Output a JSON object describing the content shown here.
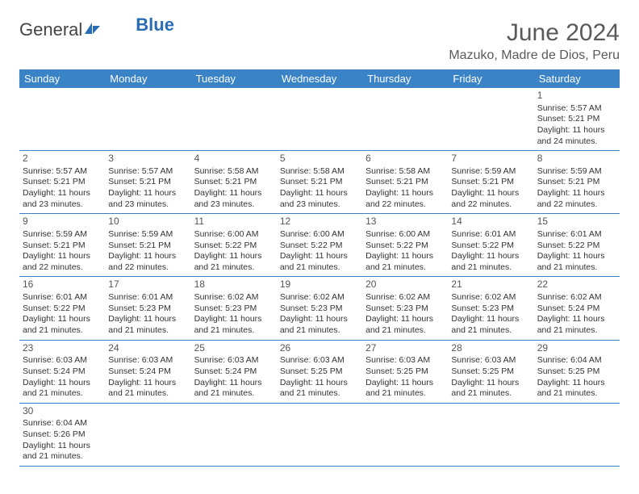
{
  "logo": {
    "text1": "General",
    "text2": "Blue"
  },
  "title": "June 2024",
  "location": "Mazuko, Madre de Dios, Peru",
  "header_bg": "#3a83c7",
  "border_color": "#3a83c7",
  "weekdays": [
    "Sunday",
    "Monday",
    "Tuesday",
    "Wednesday",
    "Thursday",
    "Friday",
    "Saturday"
  ],
  "weeks": [
    [
      null,
      null,
      null,
      null,
      null,
      null,
      {
        "n": "1",
        "sr": "5:57 AM",
        "ss": "5:21 PM",
        "dl": "11 hours and 24 minutes."
      }
    ],
    [
      {
        "n": "2",
        "sr": "5:57 AM",
        "ss": "5:21 PM",
        "dl": "11 hours and 23 minutes."
      },
      {
        "n": "3",
        "sr": "5:57 AM",
        "ss": "5:21 PM",
        "dl": "11 hours and 23 minutes."
      },
      {
        "n": "4",
        "sr": "5:58 AM",
        "ss": "5:21 PM",
        "dl": "11 hours and 23 minutes."
      },
      {
        "n": "5",
        "sr": "5:58 AM",
        "ss": "5:21 PM",
        "dl": "11 hours and 23 minutes."
      },
      {
        "n": "6",
        "sr": "5:58 AM",
        "ss": "5:21 PM",
        "dl": "11 hours and 22 minutes."
      },
      {
        "n": "7",
        "sr": "5:59 AM",
        "ss": "5:21 PM",
        "dl": "11 hours and 22 minutes."
      },
      {
        "n": "8",
        "sr": "5:59 AM",
        "ss": "5:21 PM",
        "dl": "11 hours and 22 minutes."
      }
    ],
    [
      {
        "n": "9",
        "sr": "5:59 AM",
        "ss": "5:21 PM",
        "dl": "11 hours and 22 minutes."
      },
      {
        "n": "10",
        "sr": "5:59 AM",
        "ss": "5:21 PM",
        "dl": "11 hours and 22 minutes."
      },
      {
        "n": "11",
        "sr": "6:00 AM",
        "ss": "5:22 PM",
        "dl": "11 hours and 21 minutes."
      },
      {
        "n": "12",
        "sr": "6:00 AM",
        "ss": "5:22 PM",
        "dl": "11 hours and 21 minutes."
      },
      {
        "n": "13",
        "sr": "6:00 AM",
        "ss": "5:22 PM",
        "dl": "11 hours and 21 minutes."
      },
      {
        "n": "14",
        "sr": "6:01 AM",
        "ss": "5:22 PM",
        "dl": "11 hours and 21 minutes."
      },
      {
        "n": "15",
        "sr": "6:01 AM",
        "ss": "5:22 PM",
        "dl": "11 hours and 21 minutes."
      }
    ],
    [
      {
        "n": "16",
        "sr": "6:01 AM",
        "ss": "5:22 PM",
        "dl": "11 hours and 21 minutes."
      },
      {
        "n": "17",
        "sr": "6:01 AM",
        "ss": "5:23 PM",
        "dl": "11 hours and 21 minutes."
      },
      {
        "n": "18",
        "sr": "6:02 AM",
        "ss": "5:23 PM",
        "dl": "11 hours and 21 minutes."
      },
      {
        "n": "19",
        "sr": "6:02 AM",
        "ss": "5:23 PM",
        "dl": "11 hours and 21 minutes."
      },
      {
        "n": "20",
        "sr": "6:02 AM",
        "ss": "5:23 PM",
        "dl": "11 hours and 21 minutes."
      },
      {
        "n": "21",
        "sr": "6:02 AM",
        "ss": "5:23 PM",
        "dl": "11 hours and 21 minutes."
      },
      {
        "n": "22",
        "sr": "6:02 AM",
        "ss": "5:24 PM",
        "dl": "11 hours and 21 minutes."
      }
    ],
    [
      {
        "n": "23",
        "sr": "6:03 AM",
        "ss": "5:24 PM",
        "dl": "11 hours and 21 minutes."
      },
      {
        "n": "24",
        "sr": "6:03 AM",
        "ss": "5:24 PM",
        "dl": "11 hours and 21 minutes."
      },
      {
        "n": "25",
        "sr": "6:03 AM",
        "ss": "5:24 PM",
        "dl": "11 hours and 21 minutes."
      },
      {
        "n": "26",
        "sr": "6:03 AM",
        "ss": "5:25 PM",
        "dl": "11 hours and 21 minutes."
      },
      {
        "n": "27",
        "sr": "6:03 AM",
        "ss": "5:25 PM",
        "dl": "11 hours and 21 minutes."
      },
      {
        "n": "28",
        "sr": "6:03 AM",
        "ss": "5:25 PM",
        "dl": "11 hours and 21 minutes."
      },
      {
        "n": "29",
        "sr": "6:04 AM",
        "ss": "5:25 PM",
        "dl": "11 hours and 21 minutes."
      }
    ],
    [
      {
        "n": "30",
        "sr": "6:04 AM",
        "ss": "5:26 PM",
        "dl": "11 hours and 21 minutes."
      },
      null,
      null,
      null,
      null,
      null,
      null
    ]
  ],
  "labels": {
    "sunrise": "Sunrise:",
    "sunset": "Sunset:",
    "daylight": "Daylight:"
  }
}
